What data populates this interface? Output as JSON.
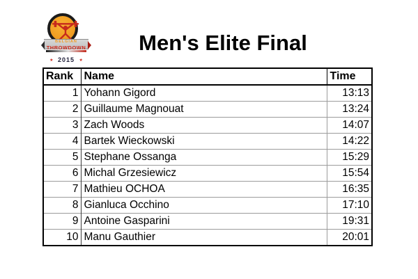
{
  "logo": {
    "line1": "BELGIAN",
    "line2": "THROWDOWN",
    "year": "2015",
    "star": "★",
    "colors": {
      "badge_orange": "#F2A024",
      "accent_red": "#CE2A1E",
      "ring_black": "#1B1B1B",
      "ribbon_gray": "#C8C8C8"
    }
  },
  "page_title": "Men's Elite Final",
  "table": {
    "columns": [
      "Rank",
      "Name",
      "Time"
    ],
    "rows": [
      {
        "rank": "1",
        "name": "Yohann Gigord",
        "time": "13:13"
      },
      {
        "rank": "2",
        "name": "Guillaume Magnouat",
        "time": "13:24"
      },
      {
        "rank": "3",
        "name": "Zach Woods",
        "time": "14:07"
      },
      {
        "rank": "4",
        "name": "Bartek Wieckowski",
        "time": "14:22"
      },
      {
        "rank": "5",
        "name": "Stephane Ossanga",
        "time": "15:29"
      },
      {
        "rank": "6",
        "name": "Michal Grzesiewicz",
        "time": "15:54"
      },
      {
        "rank": "7",
        "name": "Mathieu OCHOA",
        "time": "16:35"
      },
      {
        "rank": "8",
        "name": "Gianluca Occhino",
        "time": "17:10"
      },
      {
        "rank": "9",
        "name": "Antoine Gasparini",
        "time": "19:31"
      },
      {
        "rank": "10",
        "name": "Manu Gauthier",
        "time": "20:01"
      }
    ]
  }
}
